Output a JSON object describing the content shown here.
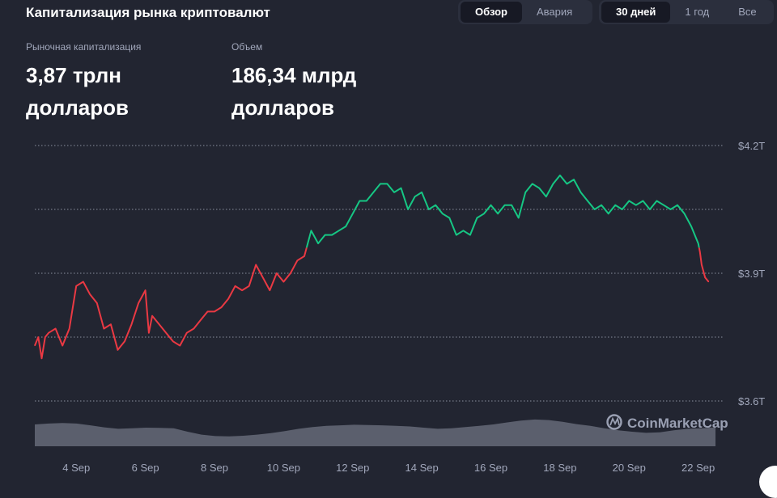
{
  "header": {
    "title": "Капитализация рынка криптовалют"
  },
  "view_tabs": [
    {
      "label": "Обзор",
      "active": true
    },
    {
      "label": "Авария",
      "active": false
    }
  ],
  "range_tabs": [
    {
      "label": "30 дней",
      "active": true
    },
    {
      "label": "1 год",
      "active": false
    },
    {
      "label": "Все",
      "active": false
    }
  ],
  "stats": {
    "market_cap": {
      "label": "Рыночная капитализация",
      "value": "3,87 трлн долларов"
    },
    "volume": {
      "label": "Объем",
      "value": "186,34 млрд долларов"
    }
  },
  "watermark": "CoinMarketCap",
  "colors": {
    "background": "#222531",
    "up": "#16c784",
    "down": "#ea3943",
    "grid": "#8a8f9e",
    "text": "#a1a7bb",
    "volume": "#8a8f9e"
  },
  "chart_data": {
    "type": "line",
    "x_tick_labels": [
      "4 Sep",
      "6 Sep",
      "8 Sep",
      "10 Sep",
      "12 Sep",
      "14 Sep",
      "16 Sep",
      "18 Sep",
      "20 Sep",
      "22 Sep"
    ],
    "y_tick_labels": [
      "$4.2T",
      "$3.9T",
      "$3.6T"
    ],
    "ylim_trillions": [
      3.6,
      4.2
    ],
    "xlim_days": [
      2.8,
      22.5
    ],
    "baseline_trillions": 3.96,
    "series": [
      {
        "x": [
          2.8,
          2.9,
          3.0,
          3.1,
          3.2,
          3.4,
          3.6,
          3.8,
          4.0,
          4.2,
          4.4,
          4.6,
          4.8,
          5.0,
          5.2,
          5.4,
          5.6,
          5.8,
          6.0,
          6.1,
          6.2,
          6.4,
          6.6,
          6.8,
          7.0,
          7.2,
          7.4,
          7.6,
          7.8,
          8.0,
          8.2,
          8.4,
          8.6,
          8.8,
          9.0,
          9.2,
          9.4,
          9.6,
          9.8,
          10.0,
          10.2,
          10.4,
          10.6,
          10.8,
          11.0,
          11.2,
          11.4,
          11.6,
          11.8,
          12.0,
          12.2,
          12.4,
          12.6,
          12.8,
          13.0,
          13.2,
          13.4,
          13.6,
          13.8,
          14.0,
          14.2,
          14.4,
          14.6,
          14.8,
          15.0,
          15.2,
          15.4,
          15.6,
          15.8,
          16.0,
          16.2,
          16.4,
          16.6,
          16.8,
          17.0,
          17.2,
          17.4,
          17.6,
          17.8,
          18.0,
          18.2,
          18.4,
          18.6,
          18.8,
          19.0,
          19.2,
          19.4,
          19.6,
          19.8,
          20.0,
          20.2,
          20.4,
          20.6,
          20.8,
          21.0,
          21.2,
          21.4,
          21.6,
          21.8,
          22.0,
          22.05,
          22.1,
          22.2,
          22.3
        ],
        "y": [
          3.73,
          3.75,
          3.7,
          3.75,
          3.76,
          3.77,
          3.73,
          3.77,
          3.87,
          3.88,
          3.85,
          3.83,
          3.77,
          3.78,
          3.72,
          3.74,
          3.78,
          3.83,
          3.86,
          3.76,
          3.8,
          3.78,
          3.76,
          3.74,
          3.73,
          3.76,
          3.77,
          3.79,
          3.81,
          3.81,
          3.82,
          3.84,
          3.87,
          3.86,
          3.87,
          3.92,
          3.89,
          3.86,
          3.9,
          3.88,
          3.9,
          3.93,
          3.94,
          4.0,
          3.97,
          3.99,
          3.99,
          4.0,
          4.01,
          4.04,
          4.07,
          4.07,
          4.09,
          4.11,
          4.11,
          4.09,
          4.1,
          4.05,
          4.08,
          4.09,
          4.05,
          4.06,
          4.04,
          4.03,
          3.99,
          4.0,
          3.99,
          4.03,
          4.04,
          4.06,
          4.04,
          4.06,
          4.06,
          4.03,
          4.09,
          4.11,
          4.1,
          4.08,
          4.11,
          4.13,
          4.11,
          4.12,
          4.09,
          4.07,
          4.05,
          4.06,
          4.04,
          4.06,
          4.05,
          4.07,
          4.06,
          4.07,
          4.05,
          4.07,
          4.06,
          4.05,
          4.06,
          4.04,
          4.01,
          3.97,
          3.95,
          3.92,
          3.89,
          3.88
        ]
      }
    ],
    "volume_relative": [
      0.75,
      0.78,
      0.8,
      0.78,
      0.72,
      0.65,
      0.6,
      0.62,
      0.64,
      0.63,
      0.62,
      0.5,
      0.4,
      0.35,
      0.34,
      0.36,
      0.4,
      0.45,
      0.52,
      0.6,
      0.66,
      0.7,
      0.72,
      0.74,
      0.73,
      0.72,
      0.7,
      0.68,
      0.64,
      0.6,
      0.62,
      0.66,
      0.7,
      0.75,
      0.82,
      0.88,
      0.92,
      0.9,
      0.84,
      0.76,
      0.7,
      0.62,
      0.55,
      0.5,
      0.46,
      0.48,
      0.55,
      0.6,
      0.62,
      0.65
    ]
  }
}
